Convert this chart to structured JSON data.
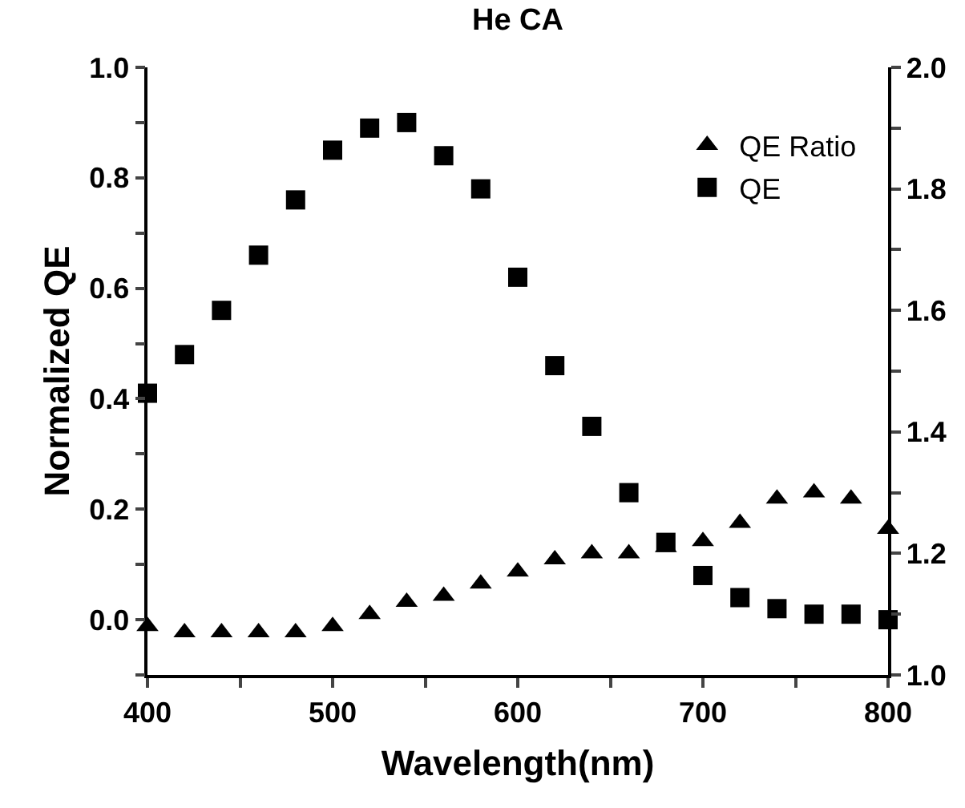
{
  "chart_data": {
    "type": "scatter",
    "title": "He CA",
    "xlabel": "Wavelength(nm)",
    "ylabel": "Normalized QE",
    "x": [
      400,
      420,
      440,
      460,
      480,
      500,
      520,
      540,
      560,
      580,
      600,
      620,
      640,
      660,
      680,
      700,
      720,
      740,
      760,
      780,
      800
    ],
    "series": [
      {
        "name": "QE Ratio",
        "color": "#000000",
        "marker": "triangle",
        "axis": "y2",
        "values": [
          1.08,
          1.07,
          1.07,
          1.07,
          1.07,
          1.08,
          1.1,
          1.12,
          1.13,
          1.15,
          1.17,
          1.19,
          1.2,
          1.2,
          1.21,
          1.22,
          1.25,
          1.29,
          1.3,
          1.29,
          1.24
        ]
      },
      {
        "name": "QE",
        "color": "#000000",
        "marker": "square",
        "values": [
          0.41,
          0.48,
          0.56,
          0.66,
          0.76,
          0.85,
          0.89,
          0.9,
          0.84,
          0.78,
          0.62,
          0.46,
          0.35,
          0.23,
          0.14,
          0.08,
          0.04,
          0.02,
          0.01,
          0.01,
          0.0
        ]
      }
    ],
    "xlim": [
      400,
      800
    ],
    "xticks": [
      400,
      {
        "value": 450,
        "label": null
      },
      500,
      {
        "value": 550,
        "label": null
      },
      600,
      {
        "value": 650,
        "label": null
      },
      700,
      {
        "value": 750,
        "label": null
      },
      800
    ],
    "ylim": [
      -0.1,
      1.0
    ],
    "yticks": [
      {
        "value": -0.1,
        "label": null
      },
      {
        "value": 0,
        "label": "0.0"
      },
      {
        "value": 0.1,
        "label": null
      },
      {
        "value": 0.2,
        "label": "0.2"
      },
      {
        "value": 0.3,
        "label": null
      },
      {
        "value": 0.4,
        "label": "0.4"
      },
      {
        "value": 0.5,
        "label": null
      },
      {
        "value": 0.6,
        "label": "0.6"
      },
      {
        "value": 0.7,
        "label": null
      },
      {
        "value": 0.8,
        "label": "0.8"
      },
      {
        "value": 0.9,
        "label": null
      },
      {
        "value": 1.0,
        "label": "1.0"
      }
    ],
    "y2lim": [
      1.0,
      2.0
    ],
    "y2ticks": [
      {
        "value": 1.0,
        "label": "1.0"
      },
      {
        "value": 1.1,
        "label": null
      },
      {
        "value": 1.2,
        "label": "1.2"
      },
      {
        "value": 1.3,
        "label": null
      },
      {
        "value": 1.4,
        "label": "1.4"
      },
      {
        "value": 1.5,
        "label": null
      },
      {
        "value": 1.6,
        "label": "1.6"
      },
      {
        "value": 1.7,
        "label": null
      },
      {
        "value": 1.8,
        "label": "1.8"
      },
      {
        "value": 1.9,
        "label": null
      },
      {
        "value": 2.0,
        "label": "2.0"
      }
    ],
    "legend": "top right"
  }
}
